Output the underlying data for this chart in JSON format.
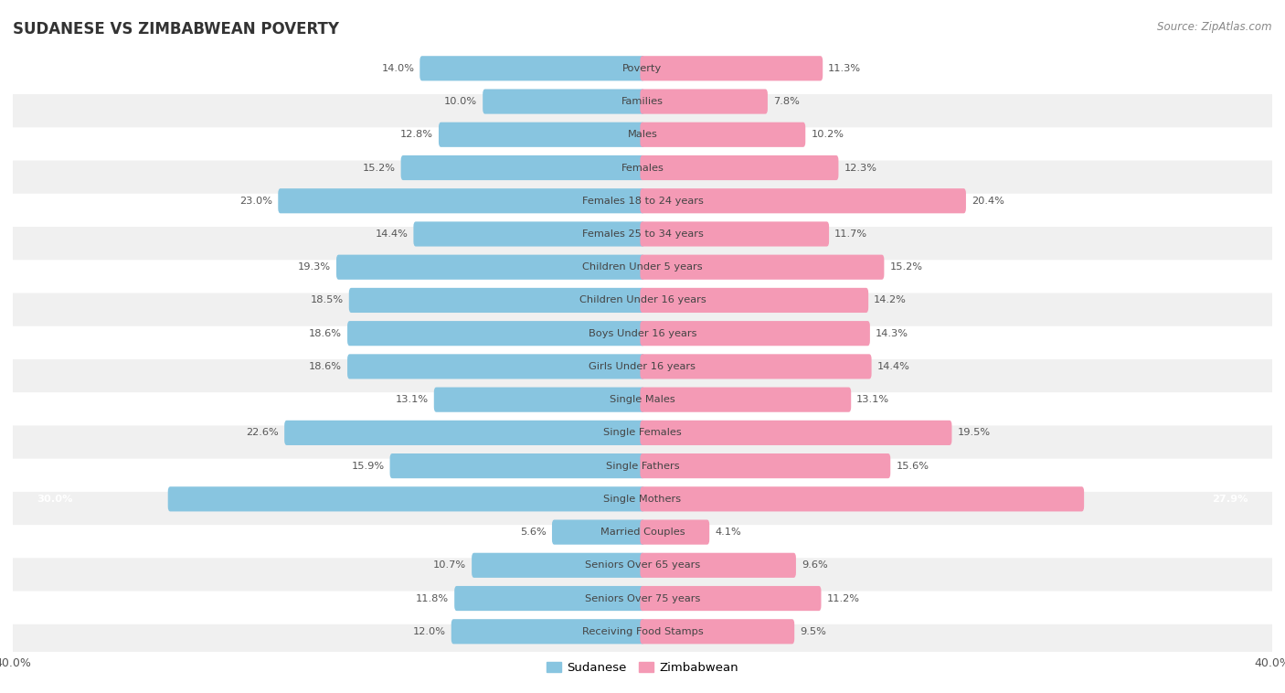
{
  "title": "SUDANESE VS ZIMBABWEAN POVERTY",
  "source": "Source: ZipAtlas.com",
  "categories": [
    "Poverty",
    "Families",
    "Males",
    "Females",
    "Females 18 to 24 years",
    "Females 25 to 34 years",
    "Children Under 5 years",
    "Children Under 16 years",
    "Boys Under 16 years",
    "Girls Under 16 years",
    "Single Males",
    "Single Females",
    "Single Fathers",
    "Single Mothers",
    "Married Couples",
    "Seniors Over 65 years",
    "Seniors Over 75 years",
    "Receiving Food Stamps"
  ],
  "sudanese": [
    14.0,
    10.0,
    12.8,
    15.2,
    23.0,
    14.4,
    19.3,
    18.5,
    18.6,
    18.6,
    13.1,
    22.6,
    15.9,
    30.0,
    5.6,
    10.7,
    11.8,
    12.0
  ],
  "zimbabwean": [
    11.3,
    7.8,
    10.2,
    12.3,
    20.4,
    11.7,
    15.2,
    14.2,
    14.3,
    14.4,
    13.1,
    19.5,
    15.6,
    27.9,
    4.1,
    9.6,
    11.2,
    9.5
  ],
  "sudanese_color": "#88c5e0",
  "zimbabwean_color": "#f49ab5",
  "background_color": "#ffffff",
  "row_bg_light": "#f0f0f0",
  "row_bg_dark": "#e0e0e0",
  "axis_max": 40.0,
  "bar_height": 0.45,
  "legend_sudanese": "Sudanese",
  "legend_zimbabwean": "Zimbabwean",
  "single_mothers_label_white": true
}
